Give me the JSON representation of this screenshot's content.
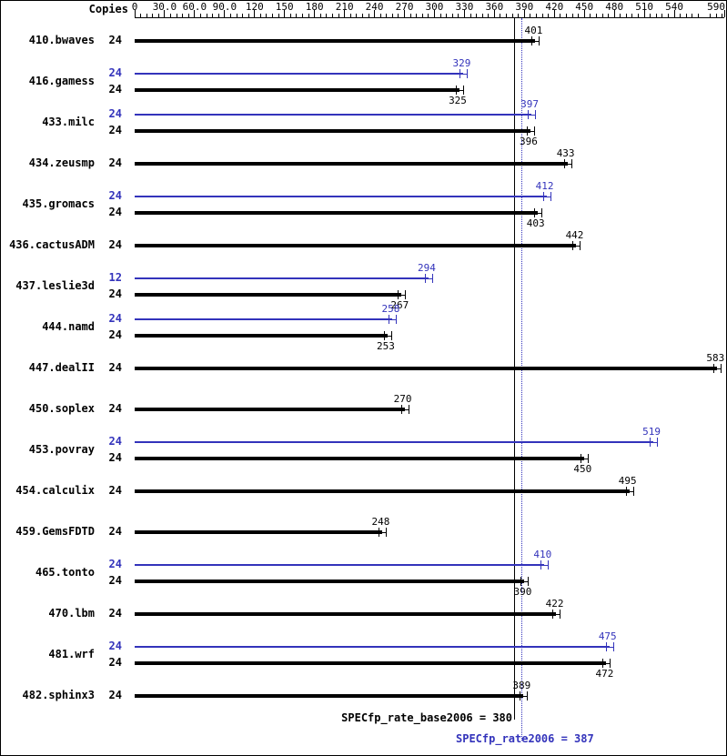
{
  "chart_data": {
    "type": "bar",
    "orientation": "horizontal",
    "copies_header": "Copies",
    "axis": {
      "min": 0,
      "max": 590,
      "minor_step": 6,
      "ticks": [
        {
          "v": 0,
          "label": "0"
        },
        {
          "v": 30,
          "label": "30.0"
        },
        {
          "v": 60,
          "label": "60.0"
        },
        {
          "v": 90,
          "label": "90.0"
        },
        {
          "v": 120,
          "label": "120"
        },
        {
          "v": 150,
          "label": "150"
        },
        {
          "v": 180,
          "label": "180"
        },
        {
          "v": 210,
          "label": "210"
        },
        {
          "v": 240,
          "label": "240"
        },
        {
          "v": 270,
          "label": "270"
        },
        {
          "v": 300,
          "label": "300"
        },
        {
          "v": 330,
          "label": "330"
        },
        {
          "v": 360,
          "label": "360"
        },
        {
          "v": 390,
          "label": "390"
        },
        {
          "v": 420,
          "label": "420"
        },
        {
          "v": 450,
          "label": "450"
        },
        {
          "v": 480,
          "label": "480"
        },
        {
          "v": 510,
          "label": "510"
        },
        {
          "v": 540,
          "label": "540"
        },
        {
          "v": 590,
          "label": "590"
        }
      ]
    },
    "benchmarks": [
      {
        "name": "410.bwaves",
        "bars": [
          {
            "kind": "base",
            "copies": 24,
            "value": 401
          }
        ]
      },
      {
        "name": "416.gamess",
        "bars": [
          {
            "kind": "peak",
            "copies": 24,
            "value": 329
          },
          {
            "kind": "base",
            "copies": 24,
            "value": 325
          }
        ]
      },
      {
        "name": "433.milc",
        "bars": [
          {
            "kind": "peak",
            "copies": 24,
            "value": 397
          },
          {
            "kind": "base",
            "copies": 24,
            "value": 396
          }
        ]
      },
      {
        "name": "434.zeusmp",
        "bars": [
          {
            "kind": "base",
            "copies": 24,
            "value": 433
          }
        ]
      },
      {
        "name": "435.gromacs",
        "bars": [
          {
            "kind": "peak",
            "copies": 24,
            "value": 412
          },
          {
            "kind": "base",
            "copies": 24,
            "value": 403
          }
        ]
      },
      {
        "name": "436.cactusADM",
        "bars": [
          {
            "kind": "base",
            "copies": 24,
            "value": 442
          }
        ]
      },
      {
        "name": "437.leslie3d",
        "bars": [
          {
            "kind": "peak",
            "copies": 12,
            "value": 294
          },
          {
            "kind": "base",
            "copies": 24,
            "value": 267
          }
        ]
      },
      {
        "name": "444.namd",
        "bars": [
          {
            "kind": "peak",
            "copies": 24,
            "value": 258
          },
          {
            "kind": "base",
            "copies": 24,
            "value": 253
          }
        ]
      },
      {
        "name": "447.dealII",
        "bars": [
          {
            "kind": "base",
            "copies": 24,
            "value": 583
          }
        ]
      },
      {
        "name": "450.soplex",
        "bars": [
          {
            "kind": "base",
            "copies": 24,
            "value": 270
          }
        ]
      },
      {
        "name": "453.povray",
        "bars": [
          {
            "kind": "peak",
            "copies": 24,
            "value": 519
          },
          {
            "kind": "base",
            "copies": 24,
            "value": 450
          }
        ]
      },
      {
        "name": "454.calculix",
        "bars": [
          {
            "kind": "base",
            "copies": 24,
            "value": 495
          }
        ]
      },
      {
        "name": "459.GemsFDTD",
        "bars": [
          {
            "kind": "base",
            "copies": 24,
            "value": 248
          }
        ]
      },
      {
        "name": "465.tonto",
        "bars": [
          {
            "kind": "peak",
            "copies": 24,
            "value": 410
          },
          {
            "kind": "base",
            "copies": 24,
            "value": 390
          }
        ]
      },
      {
        "name": "470.lbm",
        "bars": [
          {
            "kind": "base",
            "copies": 24,
            "value": 422
          }
        ]
      },
      {
        "name": "481.wrf",
        "bars": [
          {
            "kind": "peak",
            "copies": 24,
            "value": 475
          },
          {
            "kind": "base",
            "copies": 24,
            "value": 472
          }
        ]
      },
      {
        "name": "482.sphinx3",
        "bars": [
          {
            "kind": "base",
            "copies": 24,
            "value": 389
          }
        ]
      }
    ],
    "summary": {
      "base_text": "SPECfp_rate_base2006 = 380",
      "base_value": 380,
      "peak_text": "SPECfp_rate2006 = 387",
      "peak_value": 387
    },
    "colors": {
      "base": "#000000",
      "peak": "#3333bb",
      "background": "#ffffff"
    }
  }
}
